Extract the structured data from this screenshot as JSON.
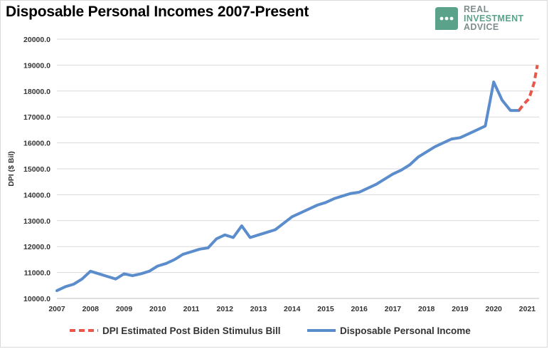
{
  "title": "Disposable Personal Incomes 2007-Present",
  "logo": {
    "line1": "REAL",
    "line2": "INVESTMENT",
    "line3": "ADVICE",
    "icon": "speech-bubble-dots-icon",
    "color": "#5aa38a"
  },
  "chart_data": {
    "type": "line",
    "ylabel": "DPI ($ Bil)",
    "xlabel": "",
    "ylim": [
      10000,
      20000
    ],
    "xlim": [
      2007,
      2021.35
    ],
    "yticks": [
      "10000.0",
      "11000.0",
      "12000.0",
      "13000.0",
      "14000.0",
      "15000.0",
      "16000.0",
      "17000.0",
      "18000.0",
      "19000.0",
      "20000.0"
    ],
    "ytick_values": [
      10000,
      11000,
      12000,
      13000,
      14000,
      15000,
      16000,
      17000,
      18000,
      19000,
      20000
    ],
    "xticks": [
      "2007",
      "2008",
      "2009",
      "2010",
      "2011",
      "2012",
      "2013",
      "2014",
      "2015",
      "2016",
      "2017",
      "2018",
      "2019",
      "2020",
      "2021"
    ],
    "xtick_values": [
      2007,
      2008,
      2009,
      2010,
      2011,
      2012,
      2013,
      2014,
      2015,
      2016,
      2017,
      2018,
      2019,
      2020,
      2021
    ],
    "grid": true,
    "legend_position": "bottom",
    "series": [
      {
        "name": "DPI Estimated Post Biden Stimulus Bill",
        "color": "#e8574a",
        "style": "dashed",
        "x": [
          2020.75,
          2020.9,
          2021.05,
          2021.2,
          2021.3
        ],
        "y": [
          17250,
          17500,
          17700,
          18300,
          19000
        ]
      },
      {
        "name": "Disposable Personal Income",
        "color": "#5b8ccc",
        "style": "solid",
        "x": [
          2007.0,
          2007.25,
          2007.5,
          2007.75,
          2008.0,
          2008.25,
          2008.5,
          2008.75,
          2009.0,
          2009.25,
          2009.5,
          2009.75,
          2010.0,
          2010.25,
          2010.5,
          2010.75,
          2011.0,
          2011.25,
          2011.5,
          2011.75,
          2012.0,
          2012.25,
          2012.5,
          2012.75,
          2013.0,
          2013.25,
          2013.5,
          2013.75,
          2014.0,
          2014.25,
          2014.5,
          2014.75,
          2015.0,
          2015.25,
          2015.5,
          2015.75,
          2016.0,
          2016.25,
          2016.5,
          2016.75,
          2017.0,
          2017.25,
          2017.5,
          2017.75,
          2018.0,
          2018.25,
          2018.5,
          2018.75,
          2019.0,
          2019.25,
          2019.5,
          2019.75,
          2020.0,
          2020.25,
          2020.5,
          2020.75
        ],
        "y": [
          10300,
          10450,
          10550,
          10750,
          11050,
          10950,
          10850,
          10750,
          10950,
          10880,
          10950,
          11050,
          11250,
          11350,
          11500,
          11700,
          11800,
          11900,
          11950,
          12300,
          12450,
          12350,
          12800,
          12350,
          12450,
          12550,
          12650,
          12900,
          13150,
          13300,
          13450,
          13600,
          13700,
          13850,
          13950,
          14050,
          14100,
          14250,
          14400,
          14600,
          14800,
          14950,
          15150,
          15450,
          15650,
          15850,
          16000,
          16150,
          16200,
          16350,
          16500,
          16650,
          18350,
          17650,
          17250,
          17250
        ]
      }
    ]
  }
}
